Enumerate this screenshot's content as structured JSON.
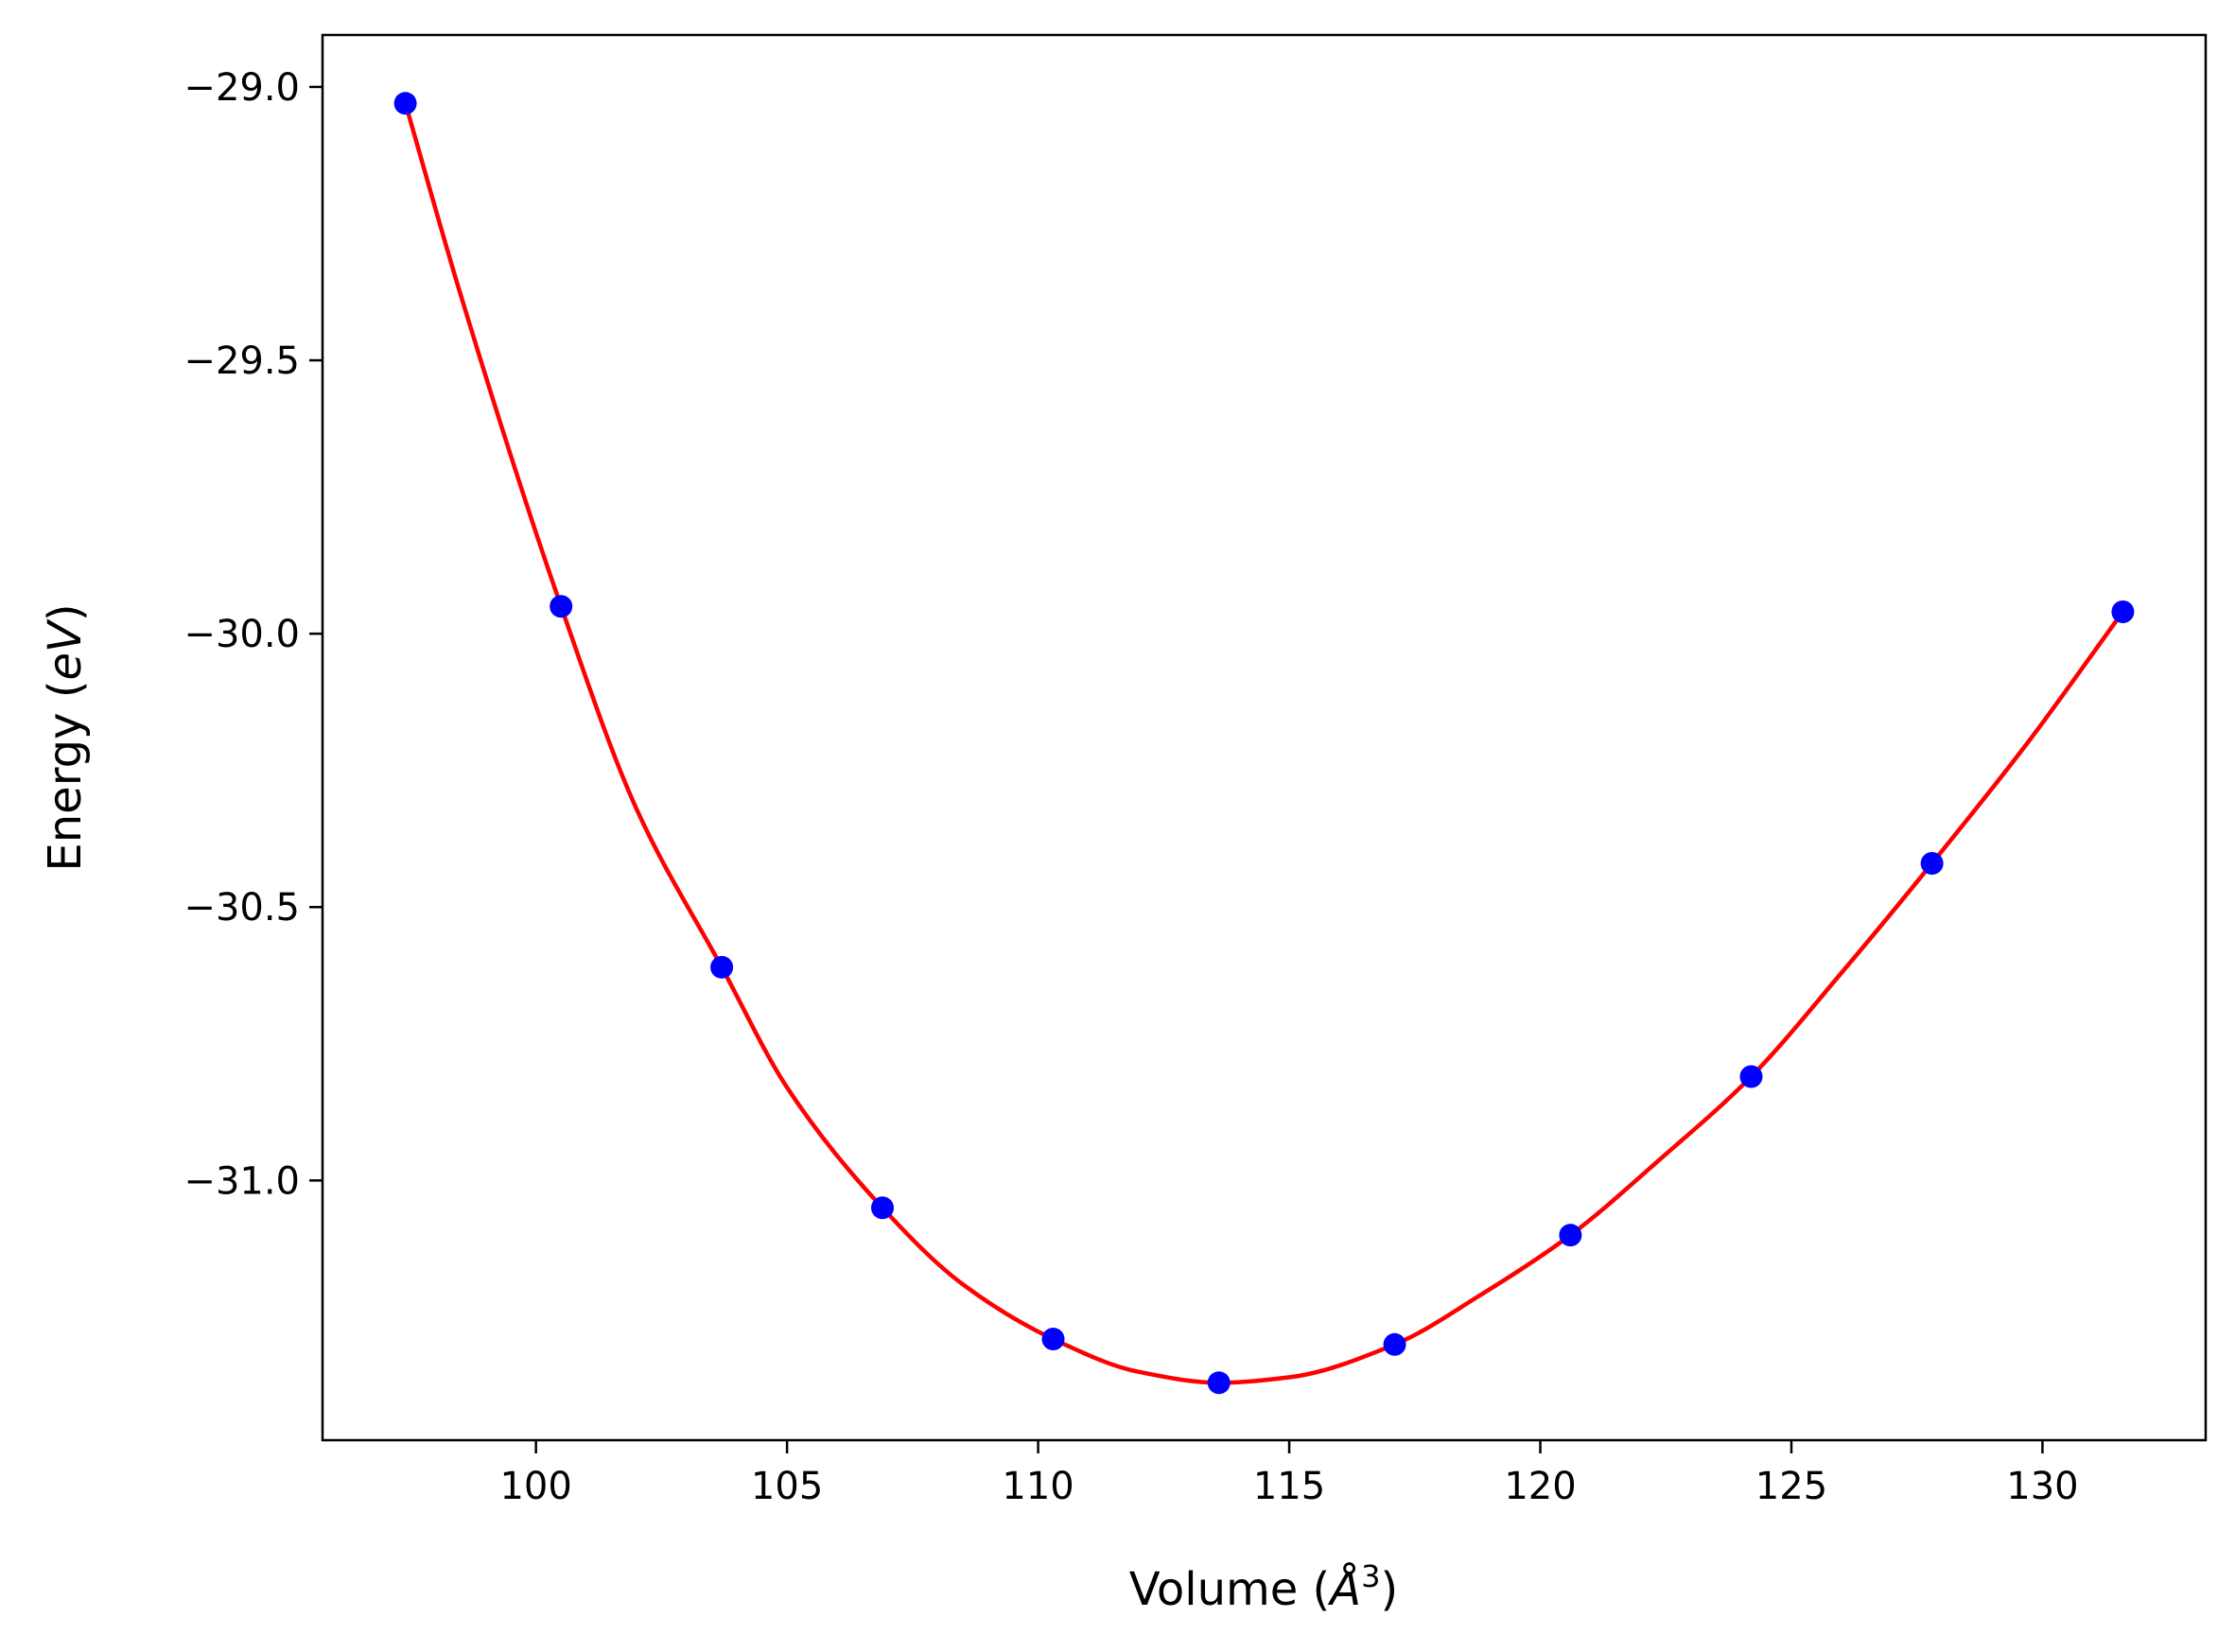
{
  "chart_data": {
    "type": "scatter",
    "xlabel": "Volume (Å³)",
    "xlabel_parts": {
      "pre": "Volume (",
      "unit": "Å",
      "sup": "3",
      "post": ")"
    },
    "ylabel": "Energy (eV)",
    "ylabel_parts": {
      "pre": "Energy (",
      "unit": "eV",
      "post": ")"
    },
    "title": "",
    "grid": false,
    "xlim": [
      95.75,
      133.25
    ],
    "ylim": [
      -31.475,
      -28.905
    ],
    "x_ticks": [
      100,
      105,
      110,
      115,
      120,
      125,
      130
    ],
    "y_ticks": [
      -29.0,
      -29.5,
      -30.0,
      -30.5,
      -31.0
    ],
    "x_tick_labels": [
      "100",
      "105",
      "110",
      "115",
      "120",
      "125",
      "130"
    ],
    "y_tick_labels": [
      "−29.0",
      "−29.5",
      "−30.0",
      "−30.5",
      "−31.0"
    ],
    "series": [
      {
        "kind": "points",
        "color": "#0000ff",
        "x": [
          97.4,
          100.5,
          103.7,
          106.9,
          110.3,
          113.6,
          117.1,
          120.6,
          124.2,
          127.8,
          131.6
        ],
        "y": [
          -29.03,
          -29.95,
          -30.61,
          -31.05,
          -31.29,
          -31.37,
          -31.3,
          -31.1,
          -30.81,
          -30.42,
          -29.96
        ]
      },
      {
        "kind": "fit-line",
        "color": "#ff0000",
        "x": [
          97.4,
          98.5,
          100.5,
          102.0,
          103.7,
          105.0,
          106.9,
          108.5,
          110.3,
          112.0,
          113.6,
          115.0,
          117.1,
          118.8,
          120.6,
          122.4,
          124.2,
          126.0,
          127.8,
          129.7,
          131.6
        ],
        "y": [
          -29.03,
          -29.38,
          -29.95,
          -30.32,
          -30.61,
          -30.83,
          -31.05,
          -31.19,
          -31.29,
          -31.35,
          -31.37,
          -31.36,
          -31.3,
          -31.21,
          -31.1,
          -30.96,
          -30.81,
          -30.62,
          -30.42,
          -30.2,
          -29.96
        ]
      }
    ]
  }
}
